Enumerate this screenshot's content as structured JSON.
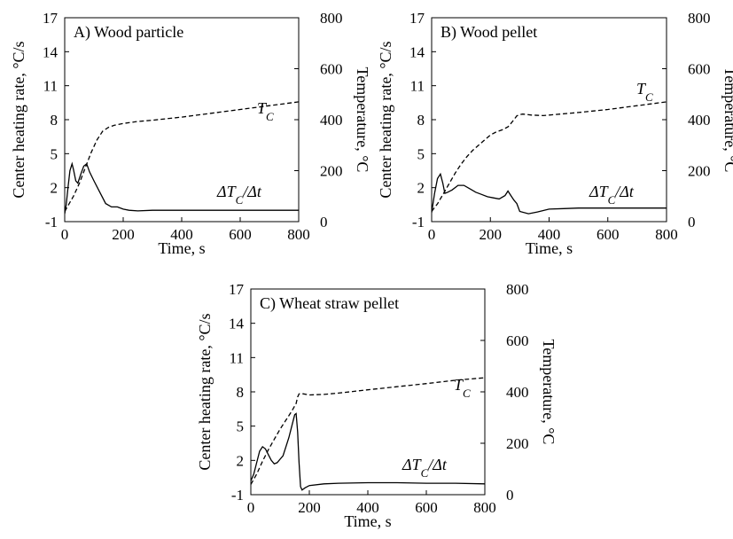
{
  "figure": {
    "colors": {
      "axes": "#000000",
      "rate_line": "#000000",
      "temp_line": "#000000"
    }
  },
  "chart_data": [
    {
      "type": "line",
      "title": "A) Wood particle",
      "xlabel": "Time, s",
      "ylabel_left": "Center heating rate, °C/s",
      "ylabel_right": "Temperature, °C",
      "xlim": [
        0,
        800
      ],
      "ylim_left": [
        -1,
        17
      ],
      "ylim_right": [
        0,
        800
      ],
      "xticks": [
        0,
        200,
        400,
        600,
        800
      ],
      "yticks_left": [
        -1,
        2,
        5,
        8,
        11,
        14,
        17
      ],
      "yticks_right": [
        0,
        200,
        400,
        600,
        800
      ],
      "grid": false,
      "series": [
        {
          "name": "ΔT",
          "subscript": "C",
          "suffix": "/Δt",
          "axis": "left",
          "style": "solid",
          "x": [
            0,
            5,
            12,
            18,
            25,
            30,
            38,
            45,
            55,
            65,
            75,
            85,
            100,
            120,
            140,
            160,
            180,
            200,
            220,
            250,
            300,
            400,
            500,
            600,
            700,
            800
          ],
          "y": [
            -0.3,
            0.5,
            2.2,
            3.5,
            4.1,
            3.6,
            2.6,
            2.4,
            3.2,
            3.9,
            4.1,
            3.4,
            2.6,
            1.6,
            0.6,
            0.3,
            0.3,
            0.1,
            0.0,
            -0.05,
            0.0,
            0.0,
            0.0,
            0.0,
            0.0,
            0.0
          ]
        },
        {
          "name": "T",
          "subscript": "C",
          "suffix": "",
          "axis": "right",
          "style": "dashed",
          "x": [
            0,
            10,
            30,
            50,
            70,
            90,
            110,
            130,
            150,
            170,
            200,
            250,
            300,
            400,
            500,
            600,
            700,
            800
          ],
          "y": [
            40,
            60,
            100,
            150,
            210,
            270,
            320,
            355,
            370,
            378,
            385,
            393,
            398,
            410,
            425,
            440,
            455,
            470
          ]
        }
      ]
    },
    {
      "type": "line",
      "title": "B) Wood pellet",
      "xlabel": "Time, s",
      "ylabel_left": "Center heating rate, °C/s",
      "ylabel_right": "Temperature, °C",
      "xlim": [
        0,
        800
      ],
      "ylim_left": [
        -1,
        17
      ],
      "ylim_right": [
        0,
        800
      ],
      "xticks": [
        0,
        200,
        400,
        600,
        800
      ],
      "yticks_left": [
        -1,
        2,
        5,
        8,
        11,
        14,
        17
      ],
      "yticks_right": [
        0,
        200,
        400,
        600,
        800
      ],
      "grid": false,
      "series": [
        {
          "name": "ΔT",
          "subscript": "C",
          "suffix": "/Δt",
          "axis": "left",
          "style": "solid",
          "x": [
            0,
            10,
            20,
            30,
            38,
            45,
            55,
            70,
            90,
            110,
            130,
            150,
            170,
            190,
            210,
            230,
            250,
            260,
            270,
            280,
            290,
            300,
            330,
            360,
            400,
            450,
            500,
            600,
            700,
            800
          ],
          "y": [
            -0.2,
            1.5,
            2.8,
            3.2,
            2.4,
            1.5,
            1.6,
            1.8,
            2.2,
            2.2,
            1.9,
            1.6,
            1.4,
            1.2,
            1.1,
            1.0,
            1.3,
            1.7,
            1.3,
            0.9,
            0.6,
            -0.1,
            -0.3,
            -0.15,
            0.1,
            0.15,
            0.2,
            0.2,
            0.2,
            0.2
          ]
        },
        {
          "name": "T",
          "subscript": "C",
          "suffix": "",
          "axis": "right",
          "style": "dashed",
          "x": [
            0,
            20,
            40,
            60,
            80,
            100,
            120,
            140,
            160,
            180,
            200,
            220,
            240,
            260,
            270,
            280,
            290,
            300,
            310,
            320,
            340,
            380,
            400,
            500,
            600,
            700,
            800
          ],
          "y": [
            40,
            70,
            110,
            150,
            190,
            225,
            255,
            280,
            300,
            320,
            340,
            352,
            360,
            372,
            385,
            400,
            415,
            420,
            422,
            421,
            418,
            416,
            418,
            428,
            440,
            455,
            470
          ]
        }
      ]
    },
    {
      "type": "line",
      "title": "C) Wheat straw pellet",
      "xlabel": "Time, s",
      "ylabel_left": "Center heating rate, °C/s",
      "ylabel_right": "Temperature, °C",
      "xlim": [
        0,
        800
      ],
      "ylim_left": [
        -1,
        17
      ],
      "ylim_right": [
        0,
        800
      ],
      "xticks": [
        0,
        200,
        400,
        600,
        800
      ],
      "yticks_left": [
        -1,
        2,
        5,
        8,
        11,
        14,
        17
      ],
      "yticks_right": [
        0,
        200,
        400,
        600,
        800
      ],
      "grid": false,
      "series": [
        {
          "name": "ΔT",
          "subscript": "C",
          "suffix": "/Δt",
          "axis": "left",
          "style": "solid",
          "x": [
            0,
            10,
            20,
            30,
            40,
            50,
            60,
            70,
            80,
            90,
            100,
            110,
            120,
            130,
            140,
            150,
            155,
            160,
            165,
            170,
            175,
            185,
            200,
            250,
            300,
            400,
            500,
            600,
            700,
            800
          ],
          "y": [
            0.2,
            0.8,
            1.8,
            2.8,
            3.2,
            3.0,
            2.5,
            2.0,
            1.7,
            1.8,
            2.1,
            2.4,
            3.2,
            4.0,
            5.0,
            6.0,
            6.1,
            4.5,
            1.8,
            -0.3,
            -0.6,
            -0.4,
            -0.2,
            -0.05,
            0.0,
            0.05,
            0.05,
            0.0,
            0.0,
            -0.05
          ]
        },
        {
          "name": "T",
          "subscript": "C",
          "suffix": "",
          "axis": "right",
          "style": "dashed",
          "x": [
            0,
            20,
            40,
            60,
            80,
            100,
            120,
            140,
            155,
            160,
            165,
            170,
            180,
            200,
            250,
            300,
            400,
            500,
            600,
            700,
            800
          ],
          "y": [
            40,
            80,
            130,
            175,
            215,
            255,
            290,
            325,
            355,
            380,
            392,
            393,
            392,
            388,
            390,
            395,
            408,
            420,
            432,
            445,
            455
          ]
        }
      ]
    }
  ]
}
